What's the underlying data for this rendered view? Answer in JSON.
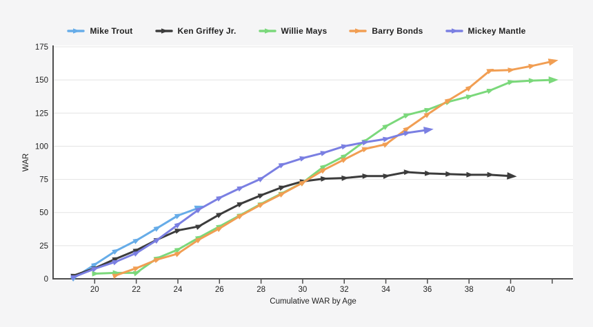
{
  "colors": {
    "page_background": "#f5f5f6",
    "plot_background": "#ffffff",
    "grid": "#e3e3e3",
    "axis": "#4d4d4d",
    "text": "#222222"
  },
  "chart_data": {
    "type": "line",
    "title": "",
    "xlabel": "Cumulative WAR by Age",
    "ylabel": "WAR",
    "xlim": [
      18,
      43
    ],
    "ylim": [
      0,
      175
    ],
    "grid": "horizontal",
    "legend_position": "top-center",
    "yticks": [
      0,
      25,
      50,
      75,
      100,
      125,
      150,
      175
    ],
    "xticks": [
      {
        "value": 20,
        "label": "20"
      },
      {
        "value": 22,
        "label": "22"
      },
      {
        "value": 24,
        "label": "24"
      },
      {
        "value": 26,
        "label": "26"
      },
      {
        "value": 28,
        "label": "28"
      },
      {
        "value": 30,
        "label": "30"
      },
      {
        "value": 32,
        "label": "32"
      },
      {
        "value": 34,
        "label": "34"
      },
      {
        "value": 36,
        "label": "36"
      },
      {
        "value": 38,
        "label": "38"
      },
      {
        "value": 40,
        "label": "40"
      },
      {
        "value": 42,
        "label": ""
      }
    ],
    "series": [
      {
        "name": "Mike Trout",
        "color": "#66ACE8",
        "x": [
          19,
          20,
          21,
          22,
          23,
          24,
          25
        ],
        "y": [
          0.7,
          10.7,
          20.9,
          28.9,
          38.2,
          47.7,
          53.5
        ]
      },
      {
        "name": "Ken Griffey Jr.",
        "color": "#3C3C3C",
        "x": [
          19,
          20,
          21,
          22,
          23,
          24,
          25,
          26,
          27,
          28,
          29,
          30,
          31,
          32,
          33,
          34,
          35,
          36,
          37,
          38,
          39,
          40
        ],
        "y": [
          2.5,
          8,
          15,
          21.5,
          29.5,
          36.5,
          39.5,
          48.5,
          56.5,
          63,
          69,
          73.5,
          75.5,
          76,
          77.5,
          77.5,
          80.5,
          79.5,
          79,
          78.5,
          78.5,
          77.5
        ]
      },
      {
        "name": "Willie Mays",
        "color": "#7BD87B",
        "x": [
          20,
          21,
          22,
          23,
          24,
          25,
          26,
          27,
          28,
          29,
          30,
          31,
          32,
          33,
          34,
          35,
          36,
          37,
          38,
          39,
          40,
          41,
          42
        ],
        "y": [
          3.9,
          4.5,
          4.5,
          15.5,
          22,
          31,
          39.5,
          48,
          56.5,
          64.5,
          72.5,
          84.5,
          92.5,
          104,
          115,
          123.5,
          127.5,
          133.5,
          137.5,
          142,
          148.5,
          149.5,
          150
        ]
      },
      {
        "name": "Barry Bonds",
        "color": "#F19E53",
        "x": [
          21,
          22,
          23,
          24,
          25,
          26,
          27,
          28,
          29,
          30,
          31,
          32,
          33,
          34,
          35,
          36,
          37,
          38,
          39,
          40,
          41,
          42
        ],
        "y": [
          2.5,
          8,
          14.5,
          19,
          29.5,
          38,
          47.5,
          56,
          64,
          72.5,
          82,
          90,
          98,
          101.5,
          113,
          124,
          134.5,
          144,
          157,
          157.5,
          160.5,
          164
        ]
      },
      {
        "name": "Mickey Mantle",
        "color": "#7A7FE2",
        "x": [
          19,
          20,
          21,
          22,
          23,
          24,
          25,
          26,
          27,
          28,
          29,
          30,
          31,
          32,
          33,
          34,
          35,
          36
        ],
        "y": [
          1.4,
          7.6,
          12.8,
          19.4,
          29.3,
          40.8,
          52.2,
          61,
          68.5,
          75.5,
          86,
          91,
          95,
          100,
          103,
          105.5,
          110,
          112.3
        ]
      }
    ]
  }
}
